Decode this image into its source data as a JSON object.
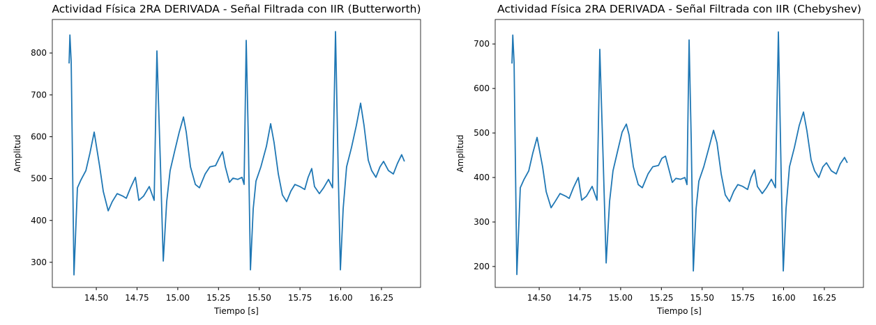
{
  "chart_data": [
    {
      "type": "line",
      "title": "Actividad Física 2RA DERIVADA - Señal Filtrada con IIR (Butterworth)",
      "xlabel": "Tiempo [s]",
      "ylabel": "Amplitud",
      "color": "#1f77b4",
      "xlim": [
        14.23,
        16.49
      ],
      "ylim": [
        240,
        880
      ],
      "xticks": [
        {
          "value": 14.5,
          "label": "14.50"
        },
        {
          "value": 14.75,
          "label": "14.75"
        },
        {
          "value": 15.0,
          "label": "15.00"
        },
        {
          "value": 15.25,
          "label": "15.25"
        },
        {
          "value": 15.5,
          "label": "15.50"
        },
        {
          "value": 15.75,
          "label": "15.75"
        },
        {
          "value": 16.0,
          "label": "16.00"
        },
        {
          "value": 16.25,
          "label": "16.25"
        }
      ],
      "yticks": [
        300,
        400,
        500,
        600,
        700,
        800
      ],
      "x": [
        14.333,
        14.338,
        14.346,
        14.363,
        14.384,
        14.406,
        14.436,
        14.461,
        14.487,
        14.521,
        14.543,
        14.573,
        14.598,
        14.628,
        14.663,
        14.684,
        14.71,
        14.74,
        14.761,
        14.79,
        14.825,
        14.855,
        14.872,
        14.894,
        14.911,
        14.932,
        14.953,
        14.983,
        15.009,
        15.035,
        15.052,
        15.078,
        15.108,
        15.133,
        15.168,
        15.197,
        15.232,
        15.253,
        15.275,
        15.292,
        15.317,
        15.339,
        15.368,
        15.394,
        15.407,
        15.42,
        15.433,
        15.446,
        15.463,
        15.48,
        15.51,
        15.544,
        15.57,
        15.591,
        15.617,
        15.642,
        15.668,
        15.694,
        15.719,
        15.749,
        15.779,
        15.8,
        15.822,
        15.839,
        15.869,
        15.895,
        15.925,
        15.95,
        15.968,
        15.985,
        15.998,
        16.015,
        16.036,
        16.066,
        16.096,
        16.122,
        16.143,
        16.169,
        16.19,
        16.216,
        16.241,
        16.263,
        16.293,
        16.323,
        16.348,
        16.374,
        16.391
      ],
      "values": [
        775,
        843,
        777,
        270,
        478,
        497,
        519,
        561,
        611,
        528,
        469,
        423,
        445,
        464,
        458,
        453,
        478,
        503,
        448,
        458,
        481,
        448,
        805,
        528,
        303,
        445,
        519,
        569,
        611,
        647,
        611,
        528,
        486,
        478,
        511,
        528,
        531,
        548,
        564,
        528,
        491,
        501,
        498,
        503,
        486,
        830,
        594,
        282,
        428,
        494,
        528,
        577,
        631,
        586,
        511,
        461,
        445,
        470,
        486,
        481,
        474,
        503,
        524,
        481,
        464,
        478,
        498,
        478,
        851,
        511,
        282,
        428,
        528,
        574,
        627,
        680,
        627,
        544,
        519,
        503,
        528,
        541,
        519,
        511,
        536,
        557,
        541
      ]
    },
    {
      "type": "line",
      "title": "Actividad Física 2RA DERIVADA - Señal Filtrada con IIR (Chebyshev)",
      "xlabel": "Tiempo [s]",
      "ylabel": "Amplitud",
      "color": "#1f77b4",
      "xlim": [
        14.23,
        16.49
      ],
      "ylim": [
        153,
        755
      ],
      "xticks": [
        {
          "value": 14.5,
          "label": "14.50"
        },
        {
          "value": 14.75,
          "label": "14.75"
        },
        {
          "value": 15.0,
          "label": "15.00"
        },
        {
          "value": 15.25,
          "label": "15.25"
        },
        {
          "value": 15.5,
          "label": "15.50"
        },
        {
          "value": 15.75,
          "label": "15.75"
        },
        {
          "value": 16.0,
          "label": "16.00"
        },
        {
          "value": 16.25,
          "label": "16.25"
        }
      ],
      "yticks": [
        200,
        300,
        400,
        500,
        600,
        700
      ],
      "x": [
        14.333,
        14.338,
        14.346,
        14.363,
        14.384,
        14.406,
        14.436,
        14.461,
        14.487,
        14.521,
        14.543,
        14.573,
        14.598,
        14.628,
        14.663,
        14.684,
        14.71,
        14.74,
        14.761,
        14.79,
        14.825,
        14.855,
        14.872,
        14.894,
        14.911,
        14.932,
        14.953,
        14.983,
        15.009,
        15.035,
        15.052,
        15.078,
        15.108,
        15.133,
        15.168,
        15.197,
        15.232,
        15.253,
        15.275,
        15.292,
        15.317,
        15.339,
        15.368,
        15.394,
        15.407,
        15.42,
        15.433,
        15.446,
        15.463,
        15.48,
        15.51,
        15.544,
        15.57,
        15.591,
        15.617,
        15.642,
        15.668,
        15.694,
        15.719,
        15.749,
        15.779,
        15.8,
        15.822,
        15.839,
        15.869,
        15.895,
        15.925,
        15.95,
        15.968,
        15.985,
        15.998,
        16.015,
        16.036,
        16.066,
        16.096,
        16.122,
        16.143,
        16.169,
        16.19,
        16.216,
        16.241,
        16.263,
        16.293,
        16.323,
        16.348,
        16.374,
        16.391
      ],
      "values": [
        656,
        720,
        658,
        182,
        377,
        395,
        415,
        455,
        490,
        424,
        368,
        332,
        346,
        364,
        358,
        353,
        377,
        400,
        349,
        358,
        380,
        349,
        688,
        424,
        208,
        346,
        415,
        462,
        502,
        520,
        495,
        424,
        384,
        377,
        408,
        424,
        427,
        443,
        448,
        424,
        389,
        398,
        396,
        400,
        384,
        709,
        486,
        190,
        330,
        392,
        424,
        470,
        506,
        478,
        408,
        361,
        346,
        369,
        384,
        380,
        373,
        400,
        417,
        380,
        364,
        377,
        396,
        377,
        727,
        408,
        190,
        330,
        424,
        467,
        517,
        547,
        505,
        439,
        415,
        400,
        424,
        433,
        415,
        408,
        431,
        445,
        433
      ]
    }
  ]
}
